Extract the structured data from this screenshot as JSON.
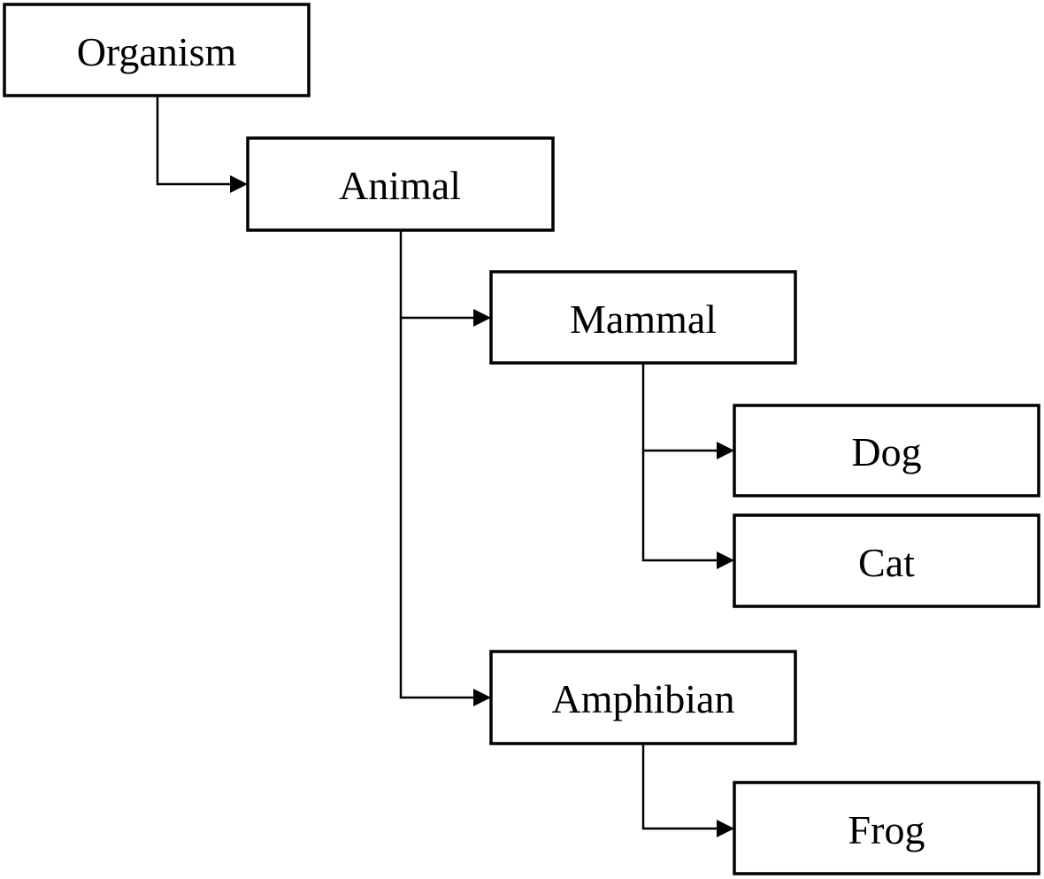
{
  "nodes": {
    "organism": "Organism",
    "animal": "Animal",
    "mammal": "Mammal",
    "dog": "Dog",
    "cat": "Cat",
    "amphibian": "Amphibian",
    "frog": "Frog"
  },
  "edges": [
    {
      "from": "organism",
      "to": "animal"
    },
    {
      "from": "animal",
      "to": "mammal"
    },
    {
      "from": "animal",
      "to": "amphibian"
    },
    {
      "from": "mammal",
      "to": "dog"
    },
    {
      "from": "mammal",
      "to": "cat"
    },
    {
      "from": "amphibian",
      "to": "frog"
    }
  ],
  "colors": {
    "stroke": "#000000",
    "fill": "#ffffff"
  }
}
